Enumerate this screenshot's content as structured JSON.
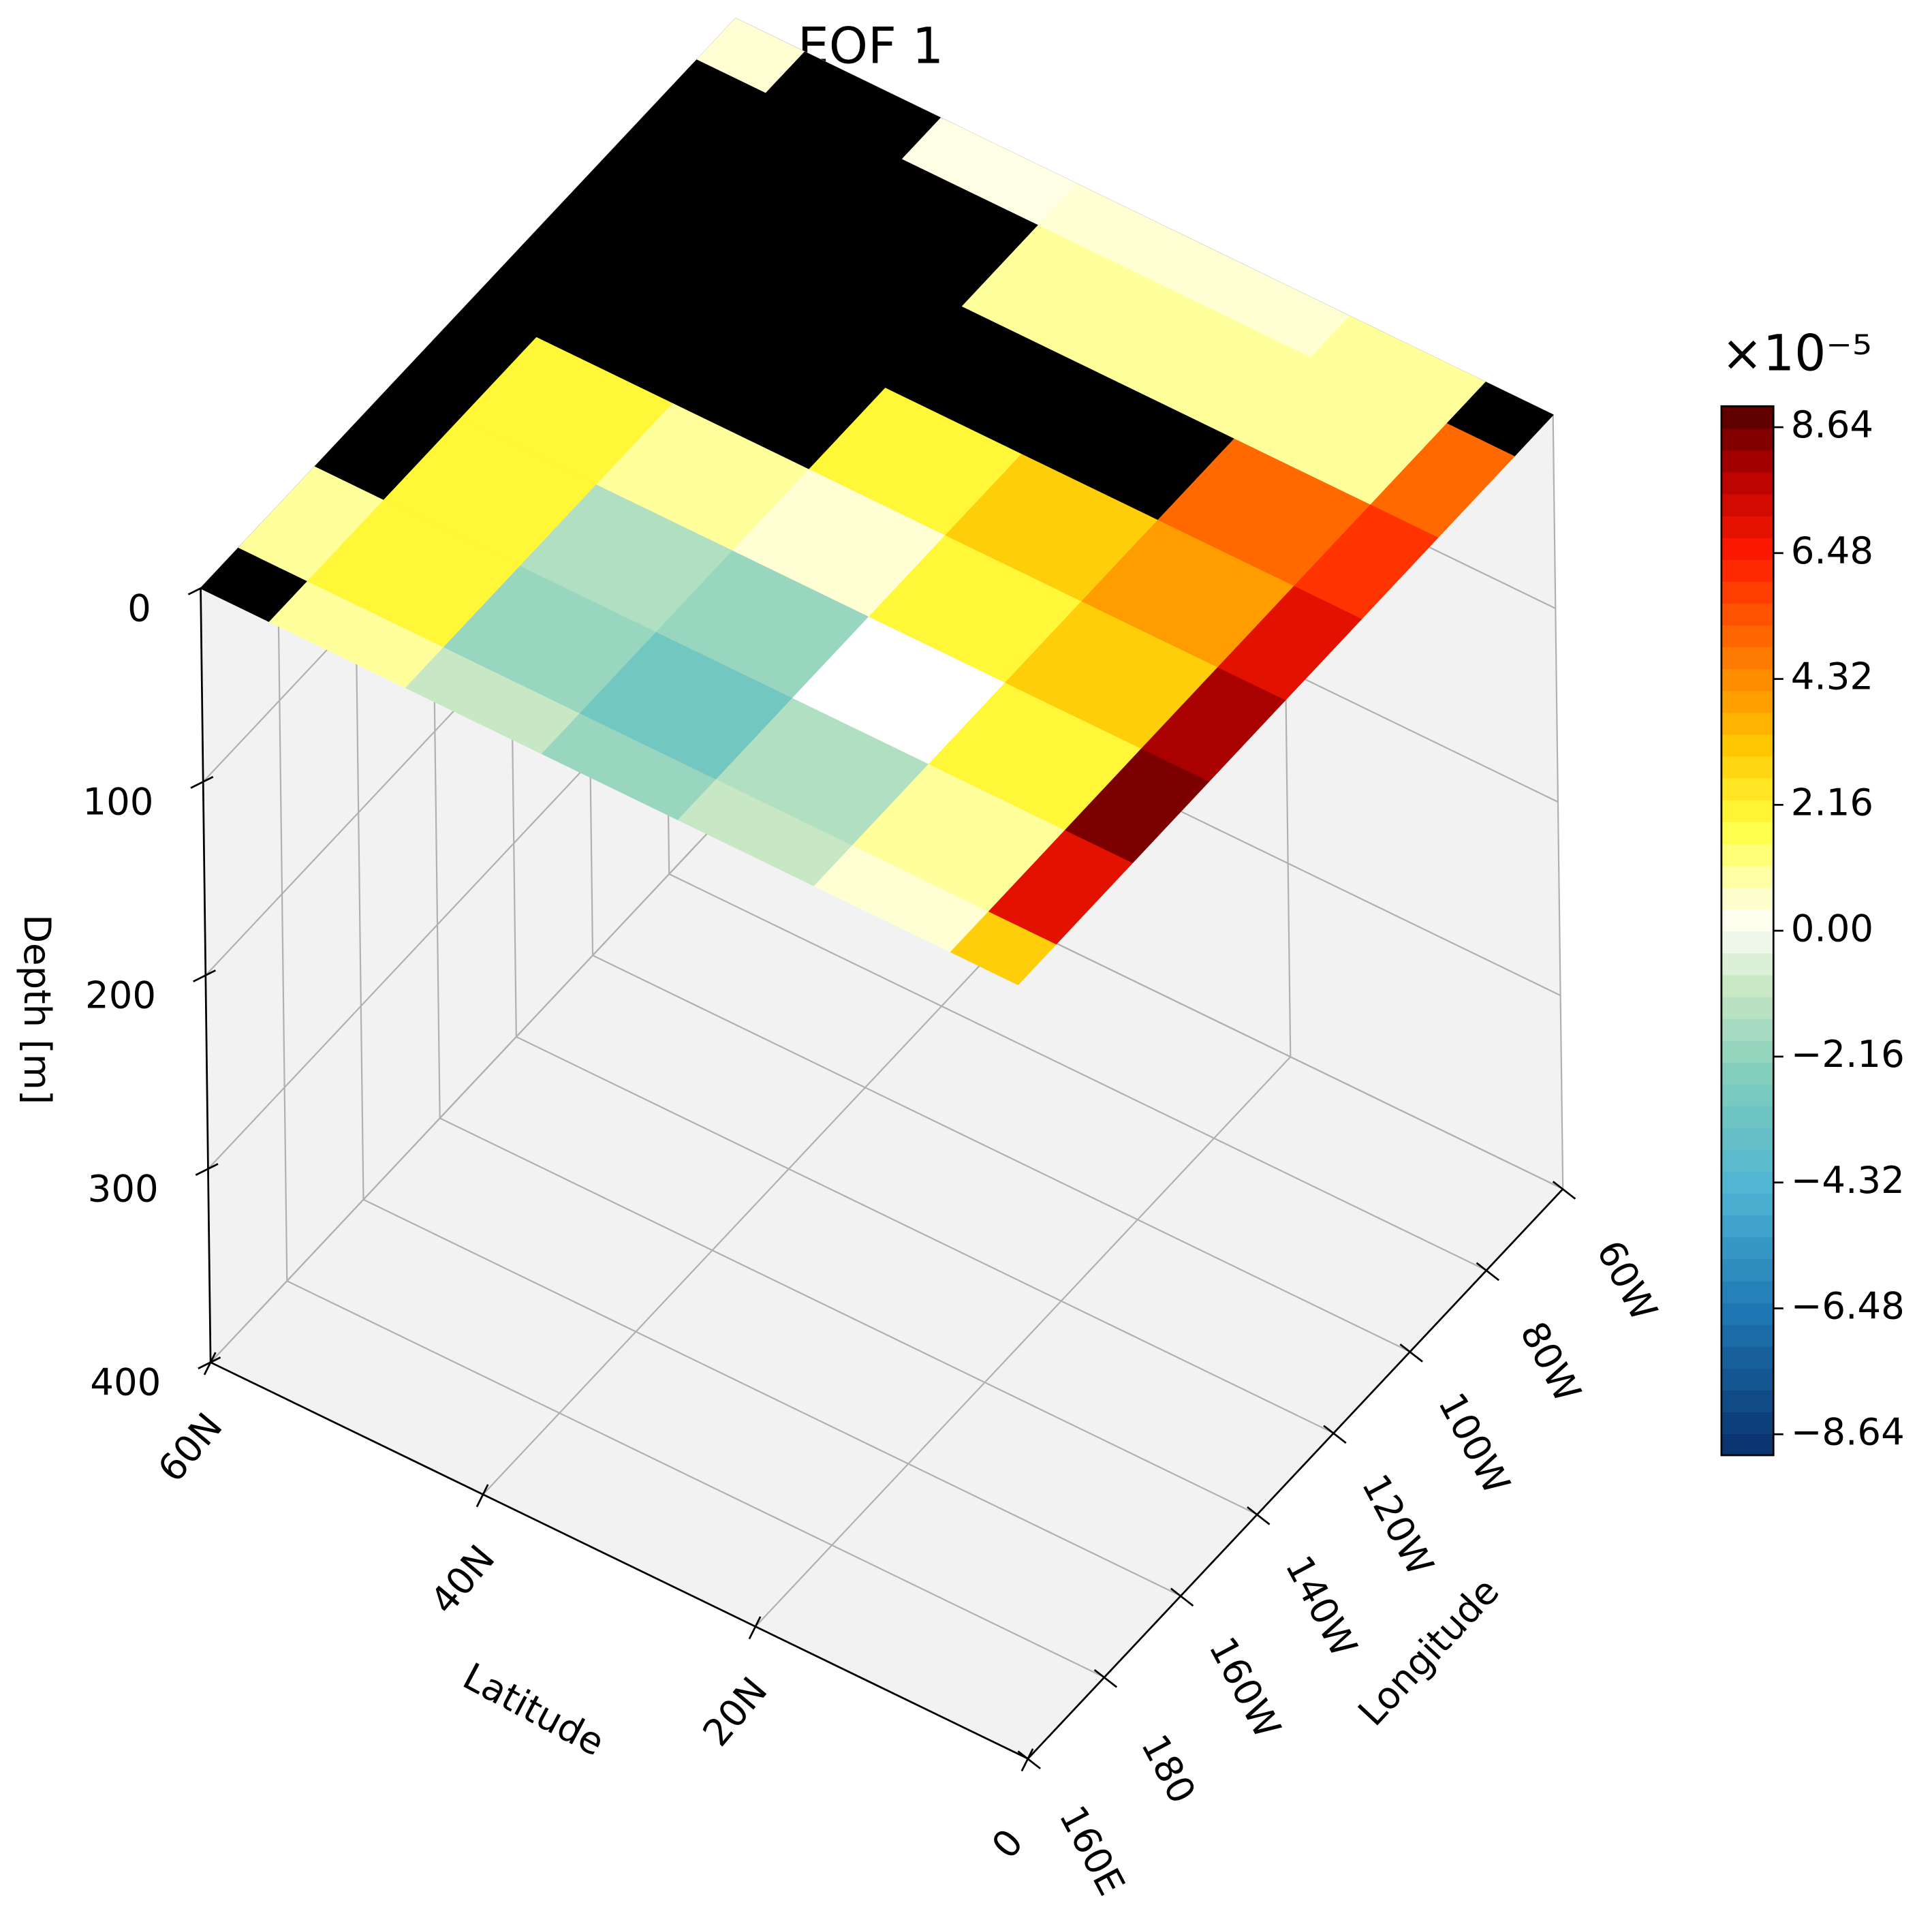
{
  "chart_data": {
    "type": "surface3d",
    "title": "EOF 1",
    "lat": [
      0,
      10,
      20,
      30,
      40,
      50,
      60
    ],
    "lon": [
      160,
      180,
      200,
      220,
      240,
      260,
      280,
      300
    ],
    "values": [
      [
        3,
        7,
        8.5,
        8,
        7,
        6,
        5,
        null
      ],
      [
        0.5,
        1,
        2,
        3,
        4,
        5,
        1,
        1
      ],
      [
        -1,
        -1.5,
        0,
        2,
        3,
        null,
        1,
        0.5
      ],
      [
        -2,
        -3,
        -2,
        0.5,
        2,
        null,
        1,
        0.5
      ],
      [
        -1,
        -2,
        -1.5,
        1,
        null,
        null,
        null,
        0.3
      ],
      [
        1,
        2,
        2,
        2,
        null,
        null,
        null,
        null
      ],
      [
        null,
        1,
        null,
        null,
        null,
        null,
        null,
        0.5
      ]
    ],
    "land_color": "#000000",
    "latlim": [
      0,
      60
    ],
    "lonlim": [
      160,
      300
    ],
    "zlim": [
      400,
      0
    ],
    "latticks": [
      {
        "value": 60,
        "label": "60N"
      },
      {
        "value": 40,
        "label": "40N"
      },
      {
        "value": 20,
        "label": "20N"
      },
      0
    ],
    "lonticks": [
      {
        "value": 160,
        "label": "160E"
      },
      180,
      {
        "value": 200,
        "label": "160W"
      },
      {
        "value": 220,
        "label": "140W"
      },
      {
        "value": 240,
        "label": "120W"
      },
      {
        "value": 260,
        "label": "100W"
      },
      {
        "value": 280,
        "label": "80W"
      },
      {
        "value": 300,
        "label": "60W"
      }
    ],
    "zticks": [
      0,
      100,
      200,
      300,
      400
    ],
    "xlabel": "Latitude",
    "ylabel": "Longitude",
    "zlabel": "Depth [m]",
    "clim": [
      -9.0,
      9.0
    ],
    "cticks": [
      {
        "value": -8.64,
        "label": "−8.64"
      },
      {
        "value": -6.48,
        "label": "−6.48"
      },
      {
        "value": -4.32,
        "label": "−4.32"
      },
      {
        "value": -2.16,
        "label": "−2.16"
      },
      {
        "value": 0,
        "label": "0.00"
      },
      2.16,
      4.32,
      6.48,
      8.64
    ],
    "colorbar_offset": "×10⁻⁵",
    "grid": true
  }
}
